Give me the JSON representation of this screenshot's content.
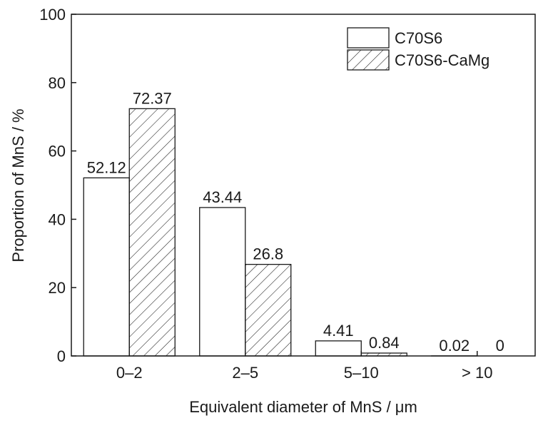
{
  "chart_data": {
    "type": "bar",
    "categories": [
      "0–2",
      "2–5",
      "5–10",
      "> 10"
    ],
    "series": [
      {
        "name": "C70S6",
        "values": [
          52.12,
          43.44,
          4.41,
          0.02
        ],
        "labels": [
          "52.12",
          "43.44",
          "4.41",
          "0.02"
        ],
        "pattern": "none"
      },
      {
        "name": "C70S6-CaMg",
        "values": [
          72.37,
          26.8,
          0.84,
          0
        ],
        "labels": [
          "72.37",
          "26.8",
          "0.84",
          "0"
        ],
        "pattern": "diagonal-hatch"
      }
    ],
    "xlabel": "Equivalent diameter of MnS / μm",
    "ylabel": "Proportion of MnS / %",
    "ylim": [
      0,
      100
    ],
    "yticks": [
      0,
      20,
      40,
      60,
      80,
      100
    ],
    "grid": false,
    "legend": "top-right"
  }
}
